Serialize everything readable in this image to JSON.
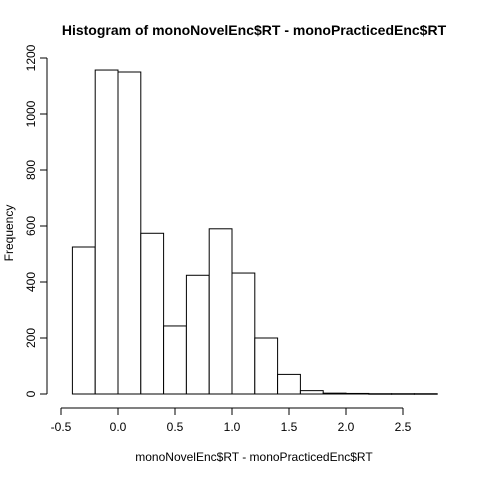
{
  "chart_data": {
    "type": "bar",
    "title": "Histogram of monoNovelEnc$RT - monoPracticedEnc$RT",
    "xlabel": "monoNovelEnc$RT - monoPracticedEnc$RT",
    "ylabel": "Frequency",
    "xlim": [
      -0.4,
      2.8
    ],
    "ylim": [
      0,
      1200
    ],
    "x_ticks": [
      -0.5,
      0.0,
      0.5,
      1.0,
      1.5,
      2.0,
      2.5
    ],
    "x_tick_labels": [
      "-0.5",
      "0.0",
      "0.5",
      "1.0",
      "1.5",
      "2.0",
      "2.5"
    ],
    "y_ticks": [
      0,
      200,
      400,
      600,
      800,
      1000,
      1200
    ],
    "y_tick_labels": [
      "0",
      "200",
      "400",
      "600",
      "800",
      "1000",
      "1200"
    ],
    "bins": [
      {
        "x0": -0.4,
        "x1": -0.2,
        "count": 525
      },
      {
        "x0": -0.2,
        "x1": 0.0,
        "count": 1157
      },
      {
        "x0": 0.0,
        "x1": 0.2,
        "count": 1150
      },
      {
        "x0": 0.2,
        "x1": 0.4,
        "count": 574
      },
      {
        "x0": 0.4,
        "x1": 0.6,
        "count": 243
      },
      {
        "x0": 0.6,
        "x1": 0.8,
        "count": 424
      },
      {
        "x0": 0.8,
        "x1": 1.0,
        "count": 590
      },
      {
        "x0": 1.0,
        "x1": 1.2,
        "count": 432
      },
      {
        "x0": 1.2,
        "x1": 1.4,
        "count": 200
      },
      {
        "x0": 1.4,
        "x1": 1.6,
        "count": 70
      },
      {
        "x0": 1.6,
        "x1": 1.8,
        "count": 12
      },
      {
        "x0": 1.8,
        "x1": 2.0,
        "count": 3
      },
      {
        "x0": 2.0,
        "x1": 2.2,
        "count": 2
      },
      {
        "x0": 2.2,
        "x1": 2.4,
        "count": 1
      },
      {
        "x0": 2.4,
        "x1": 2.6,
        "count": 1
      },
      {
        "x0": 2.6,
        "x1": 2.8,
        "count": 1
      }
    ]
  }
}
